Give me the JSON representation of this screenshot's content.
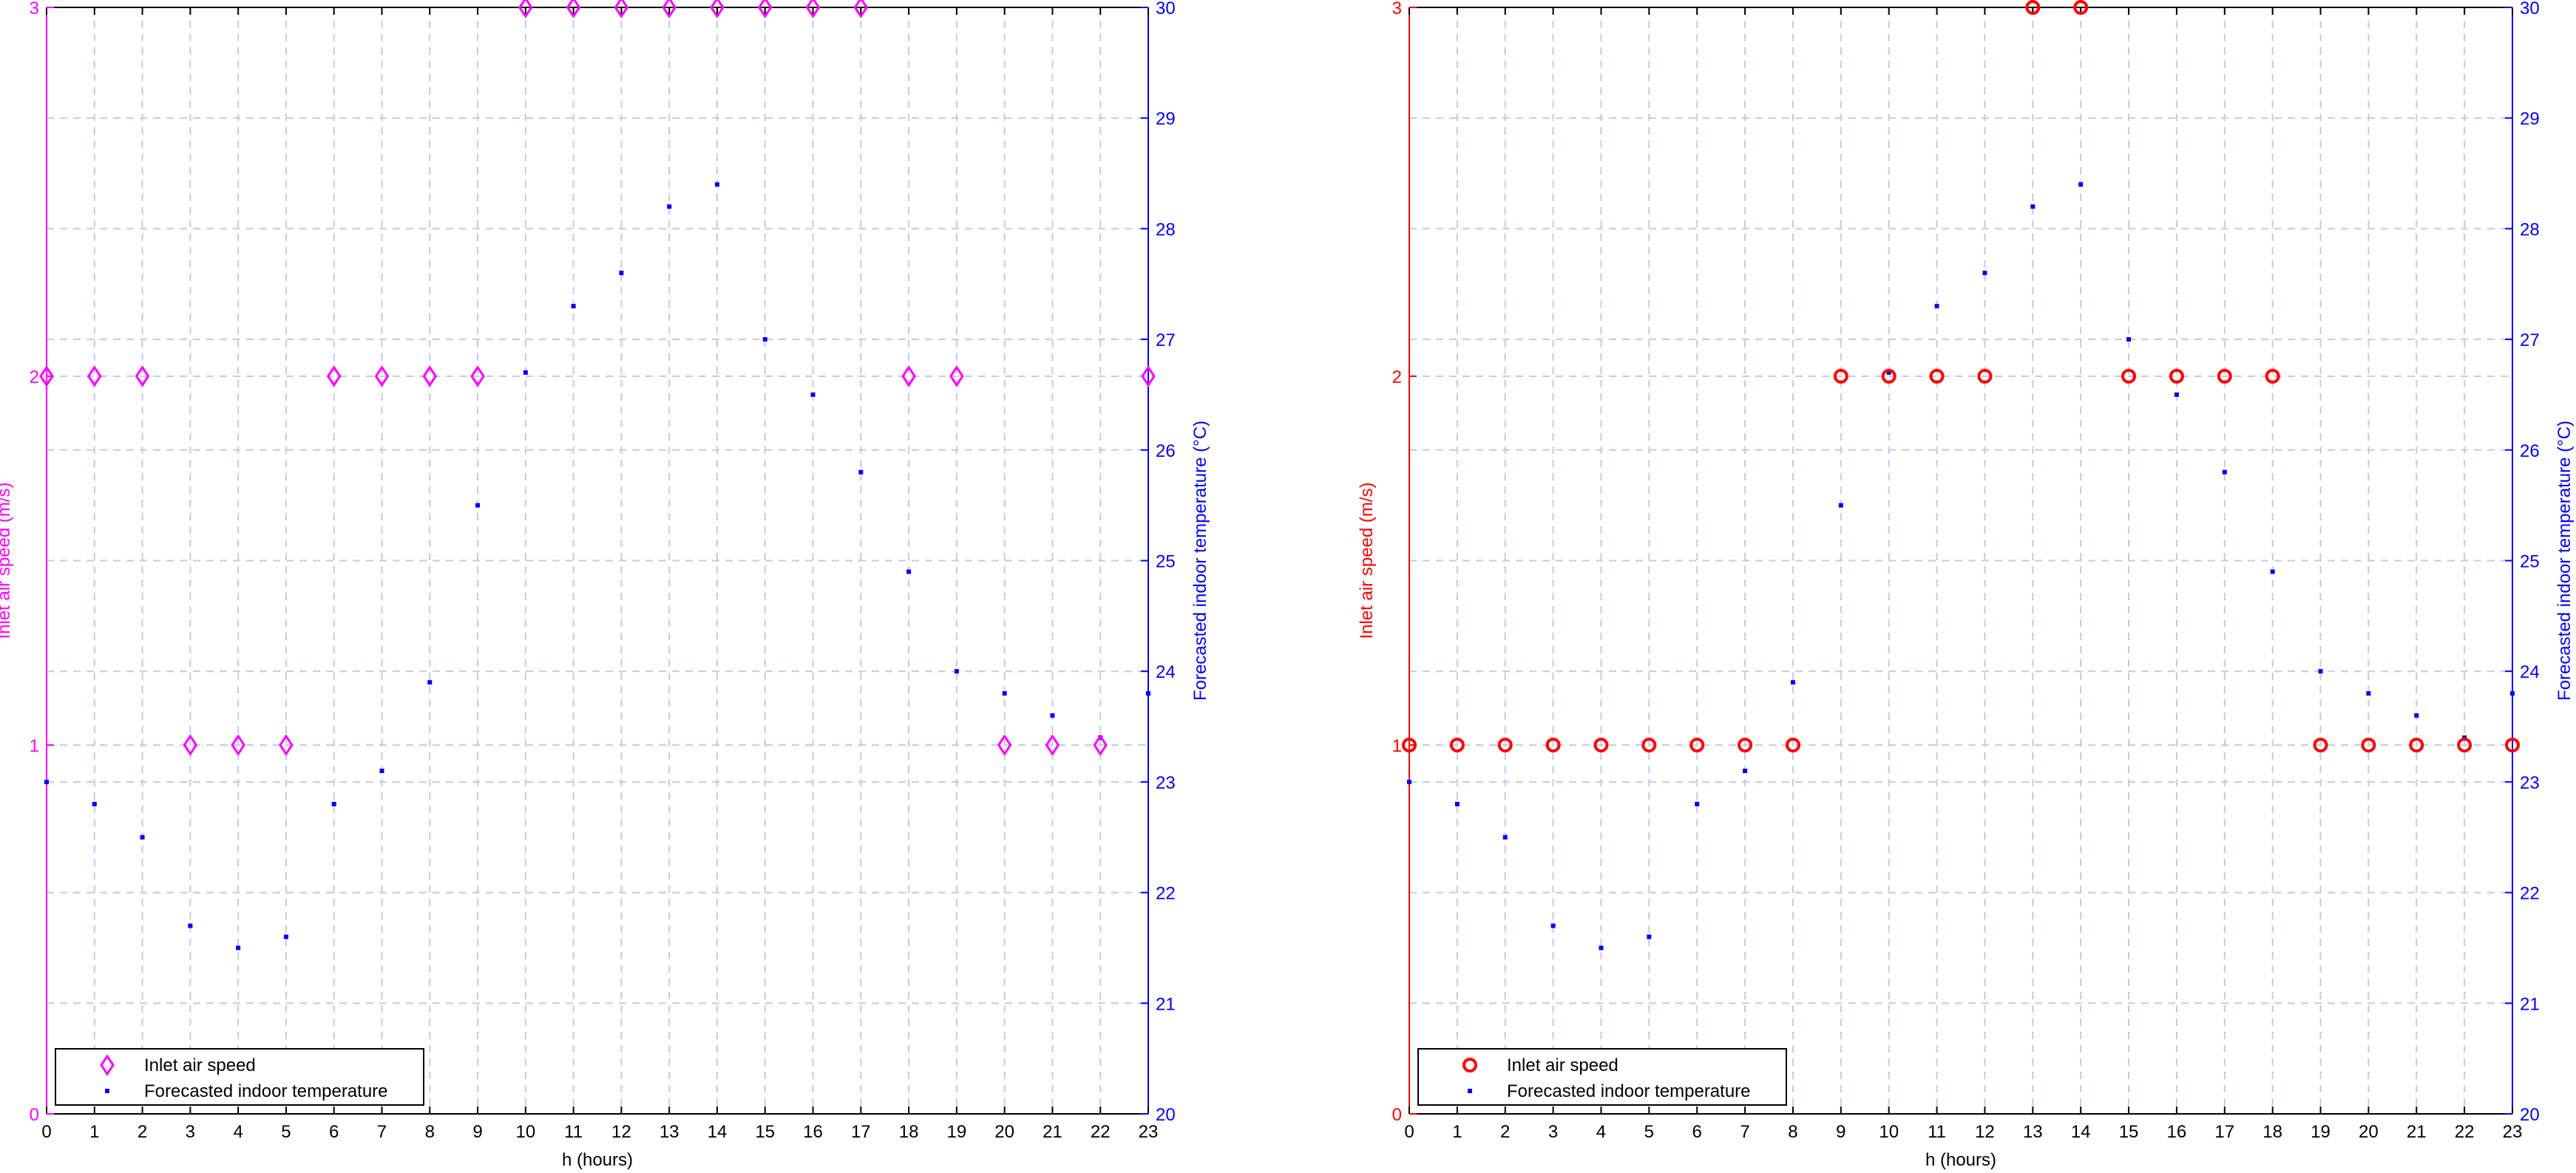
{
  "colors": {
    "background": "#ffffff",
    "grid": "#c8c8e6",
    "axis_box": "#000000",
    "temperature_axis": "#0000ff"
  },
  "chart_data": [
    {
      "type": "scatter",
      "marker_color": "#ff00ff",
      "marker_shape": "diamond",
      "xlabel": "h (hours)",
      "ylabel_left": "Inlet air speed (m/s)",
      "ylabel_right": "Forecasted indoor temperature (°C)",
      "xlim": [
        0,
        23
      ],
      "ylim_left": [
        0,
        3
      ],
      "ylim_right": [
        20,
        30
      ],
      "grid": true,
      "legend_position": "bottom-left",
      "x_ticks": [
        "0",
        "1",
        "2",
        "3",
        "4",
        "5",
        "6",
        "7",
        "8",
        "9",
        "10",
        "11",
        "12",
        "13",
        "14",
        "15",
        "16",
        "17",
        "18",
        "19",
        "20",
        "21",
        "22",
        "23"
      ],
      "y_ticks_left": [
        "0",
        "1",
        "2",
        "3"
      ],
      "y_ticks_right": [
        "20",
        "21",
        "22",
        "23",
        "24",
        "25",
        "26",
        "27",
        "28",
        "29",
        "30"
      ],
      "x": [
        0,
        1,
        2,
        3,
        4,
        5,
        6,
        7,
        8,
        9,
        10,
        11,
        12,
        13,
        14,
        15,
        16,
        17,
        18,
        19,
        20,
        21,
        22,
        23
      ],
      "series": [
        {
          "name": "Inlet air speed",
          "axis": "left",
          "values": [
            2,
            2,
            2,
            1,
            1,
            1,
            2,
            2,
            2,
            2,
            3,
            3,
            3,
            3,
            3,
            3,
            3,
            3,
            2,
            2,
            1,
            1,
            1,
            2
          ]
        },
        {
          "name": "Forecasted indoor temperature",
          "axis": "right",
          "values": [
            23.0,
            22.8,
            22.5,
            21.7,
            21.5,
            21.6,
            22.8,
            23.1,
            23.9,
            25.5,
            26.7,
            27.3,
            27.6,
            28.2,
            28.4,
            27.0,
            26.5,
            25.8,
            24.9,
            24.0,
            23.8,
            23.6,
            23.4,
            23.8
          ]
        }
      ]
    },
    {
      "type": "scatter",
      "marker_color": "#ff0000",
      "marker_shape": "circle",
      "xlabel": "h (hours)",
      "ylabel_left": "Inlet air speed (m/s)",
      "ylabel_right": "Forecasted indoor temperature (°C)",
      "xlim": [
        0,
        23
      ],
      "ylim_left": [
        0,
        3
      ],
      "ylim_right": [
        20,
        30
      ],
      "grid": true,
      "legend_position": "bottom-left",
      "x_ticks": [
        "0",
        "1",
        "2",
        "3",
        "4",
        "5",
        "6",
        "7",
        "8",
        "9",
        "10",
        "11",
        "12",
        "13",
        "14",
        "15",
        "16",
        "17",
        "18",
        "19",
        "20",
        "21",
        "22",
        "23"
      ],
      "y_ticks_left": [
        "0",
        "1",
        "2",
        "3"
      ],
      "y_ticks_right": [
        "20",
        "21",
        "22",
        "23",
        "24",
        "25",
        "26",
        "27",
        "28",
        "29",
        "30"
      ],
      "x": [
        0,
        1,
        2,
        3,
        4,
        5,
        6,
        7,
        8,
        9,
        10,
        11,
        12,
        13,
        14,
        15,
        16,
        17,
        18,
        19,
        20,
        21,
        22,
        23
      ],
      "series": [
        {
          "name": "Inlet air speed",
          "axis": "left",
          "values": [
            1,
            1,
            1,
            1,
            1,
            1,
            1,
            1,
            1,
            2,
            2,
            2,
            2,
            3,
            3,
            2,
            2,
            2,
            2,
            1,
            1,
            1,
            1,
            1
          ]
        },
        {
          "name": "Forecasted indoor temperature",
          "axis": "right",
          "values": [
            23.0,
            22.8,
            22.5,
            21.7,
            21.5,
            21.6,
            22.8,
            23.1,
            23.9,
            25.5,
            26.7,
            27.3,
            27.6,
            28.2,
            28.4,
            27.0,
            26.5,
            25.8,
            24.9,
            24.0,
            23.8,
            23.6,
            23.4,
            23.8
          ]
        }
      ]
    }
  ]
}
